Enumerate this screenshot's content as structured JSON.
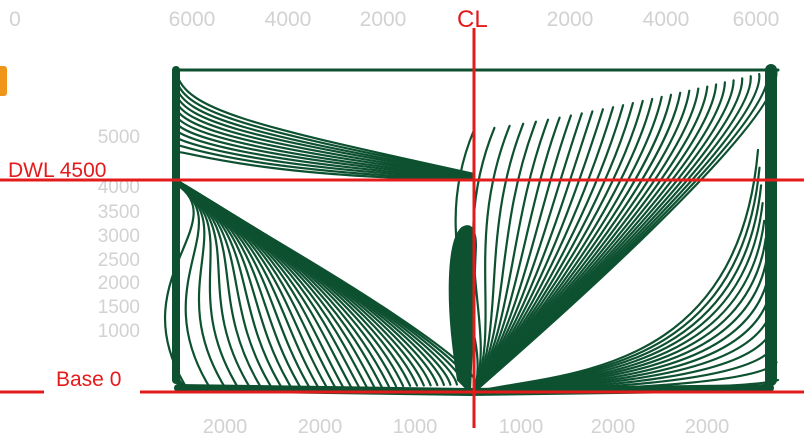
{
  "top_ticks": [
    "0",
    "6000",
    "4000",
    "2000",
    "2000",
    "4000",
    "6000"
  ],
  "left_ticks": [
    "5000",
    "4000",
    "3500",
    "3000",
    "2500",
    "2000",
    "1500",
    "1000"
  ],
  "bottom_ticks": [
    "2000",
    "2000",
    "1000",
    "1000",
    "2000",
    "2000"
  ],
  "labels": {
    "centerline": "CL",
    "waterline": "DWL 4500",
    "baseline": "Base 0"
  },
  "colors": {
    "hull_lines": "#0d5130",
    "reference_lines": "#e41b1b",
    "tick_text": "#d2d2d2",
    "accent": "#f0941a"
  }
}
